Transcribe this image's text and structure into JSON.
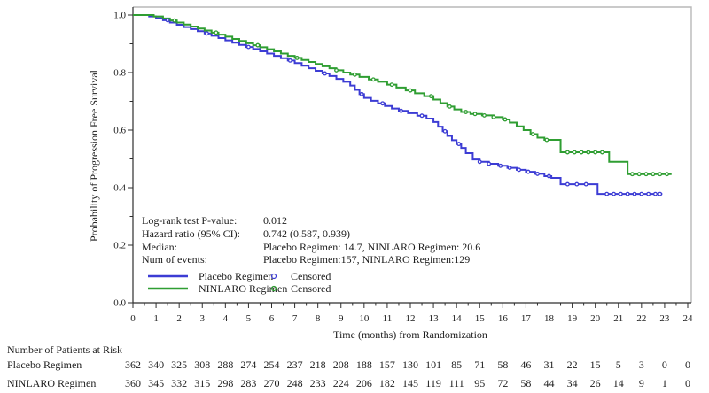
{
  "figure_title": "",
  "stats_panel": {
    "rows": [
      {
        "label": "Log-rank test P-value:",
        "value": "0.012"
      },
      {
        "label": "Hazard ratio (95% CI):",
        "value": "0.742 (0.587, 0.939)"
      },
      {
        "label": "Median:",
        "value": "Placebo Regimen: 14.7, NINLARO Regimen: 20.6"
      },
      {
        "label": "Num of events:",
        "value": "Placebo Regimen:157, NINLARO Regimen:129"
      }
    ]
  },
  "legend": {
    "entries": [
      {
        "label": "Placebo Regimen",
        "censored_label": "Censored",
        "color": "#3c3cd4"
      },
      {
        "label": "NINLARO Regimen",
        "censored_label": "Censored",
        "color": "#2f9e32"
      }
    ]
  },
  "chart_data": {
    "type": "line",
    "variant": "kaplan_meier_step",
    "title": "",
    "xlabel": "Time (months) from Randomization",
    "ylabel": "Probability of Progression Free Survival",
    "xlim": [
      0,
      24
    ],
    "ylim": [
      0.0,
      1.0
    ],
    "xticks": [
      0,
      1,
      2,
      3,
      4,
      5,
      6,
      7,
      8,
      9,
      10,
      11,
      12,
      13,
      14,
      15,
      16,
      17,
      18,
      19,
      20,
      21,
      22,
      23,
      24
    ],
    "ytick_labels": [
      "0.0",
      "0.2",
      "0.4",
      "0.6",
      "0.8",
      "1.0"
    ],
    "grid": false,
    "legend_position": "inside-bottom-left",
    "colors": {
      "placebo": "#3c3cd4",
      "ninlaro": "#2f9e32",
      "axis": "#2e2e2e",
      "frame": "#b8b8b8"
    },
    "stats": {
      "log_rank_p_value": "0.012",
      "hazard_ratio": "0.742",
      "hazard_ratio_ci_95": "(0.587, 0.939)"
    },
    "series": [
      {
        "name": "Placebo Regimen",
        "color": "#3c3cd4",
        "median_pfs_months": 14.7,
        "num_events": 157,
        "steps": [
          [
            0,
            1.0
          ],
          [
            0.7,
            0.995
          ],
          [
            1.0,
            0.989
          ],
          [
            1.3,
            0.982
          ],
          [
            1.6,
            0.974
          ],
          [
            1.9,
            0.966
          ],
          [
            2.2,
            0.958
          ],
          [
            2.5,
            0.951
          ],
          [
            2.8,
            0.944
          ],
          [
            3.1,
            0.936
          ],
          [
            3.4,
            0.928
          ],
          [
            3.7,
            0.92
          ],
          [
            4.0,
            0.912
          ],
          [
            4.3,
            0.904
          ],
          [
            4.6,
            0.896
          ],
          [
            4.9,
            0.889
          ],
          [
            5.2,
            0.882
          ],
          [
            5.5,
            0.874
          ],
          [
            5.8,
            0.866
          ],
          [
            6.1,
            0.858
          ],
          [
            6.4,
            0.85
          ],
          [
            6.7,
            0.842
          ],
          [
            7.0,
            0.833
          ],
          [
            7.3,
            0.824
          ],
          [
            7.6,
            0.815
          ],
          [
            7.9,
            0.806
          ],
          [
            8.2,
            0.797
          ],
          [
            8.5,
            0.788
          ],
          [
            8.8,
            0.778
          ],
          [
            9.1,
            0.768
          ],
          [
            9.4,
            0.755
          ],
          [
            9.6,
            0.74
          ],
          [
            9.8,
            0.725
          ],
          [
            10.0,
            0.712
          ],
          [
            10.3,
            0.702
          ],
          [
            10.6,
            0.693
          ],
          [
            10.9,
            0.684
          ],
          [
            11.2,
            0.675
          ],
          [
            11.5,
            0.667
          ],
          [
            11.9,
            0.659
          ],
          [
            12.3,
            0.65
          ],
          [
            12.7,
            0.64
          ],
          [
            13.0,
            0.628
          ],
          [
            13.2,
            0.612
          ],
          [
            13.4,
            0.596
          ],
          [
            13.6,
            0.58
          ],
          [
            13.8,
            0.565
          ],
          [
            14.0,
            0.552
          ],
          [
            14.2,
            0.538
          ],
          [
            14.4,
            0.52
          ],
          [
            14.7,
            0.498
          ],
          [
            15.0,
            0.49
          ],
          [
            15.4,
            0.483
          ],
          [
            15.8,
            0.476
          ],
          [
            16.2,
            0.469
          ],
          [
            16.6,
            0.462
          ],
          [
            17.0,
            0.455
          ],
          [
            17.4,
            0.448
          ],
          [
            17.8,
            0.44
          ],
          [
            18.1,
            0.434
          ],
          [
            18.5,
            0.412
          ],
          [
            20.1,
            0.378
          ],
          [
            22.9,
            0.378
          ]
        ],
        "censor_times": [
          1.5,
          3.2,
          5.0,
          6.8,
          8.3,
          9.9,
          10.8,
          11.6,
          12.5,
          13.5,
          14.1,
          15.0,
          15.4,
          15.9,
          16.3,
          16.7,
          17.1,
          17.5,
          18.0,
          18.8,
          19.2,
          19.6,
          20.5,
          20.8,
          21.1,
          21.4,
          21.7,
          22.0,
          22.3,
          22.6,
          22.8
        ]
      },
      {
        "name": "NINLARO Regimen",
        "color": "#2f9e32",
        "median_pfs_months": 20.6,
        "num_events": 129,
        "steps": [
          [
            0,
            1.0
          ],
          [
            0.9,
            0.995
          ],
          [
            1.3,
            0.988
          ],
          [
            1.6,
            0.981
          ],
          [
            1.9,
            0.974
          ],
          [
            2.2,
            0.967
          ],
          [
            2.5,
            0.96
          ],
          [
            2.8,
            0.953
          ],
          [
            3.1,
            0.946
          ],
          [
            3.4,
            0.939
          ],
          [
            3.7,
            0.932
          ],
          [
            4.0,
            0.925
          ],
          [
            4.3,
            0.917
          ],
          [
            4.6,
            0.91
          ],
          [
            4.9,
            0.902
          ],
          [
            5.2,
            0.895
          ],
          [
            5.5,
            0.888
          ],
          [
            5.8,
            0.881
          ],
          [
            6.1,
            0.874
          ],
          [
            6.4,
            0.866
          ],
          [
            6.7,
            0.858
          ],
          [
            7.0,
            0.851
          ],
          [
            7.3,
            0.844
          ],
          [
            7.6,
            0.837
          ],
          [
            7.9,
            0.83
          ],
          [
            8.2,
            0.822
          ],
          [
            8.5,
            0.815
          ],
          [
            8.8,
            0.808
          ],
          [
            9.1,
            0.8
          ],
          [
            9.4,
            0.793
          ],
          [
            9.8,
            0.785
          ],
          [
            10.2,
            0.776
          ],
          [
            10.6,
            0.768
          ],
          [
            11.0,
            0.758
          ],
          [
            11.4,
            0.748
          ],
          [
            11.8,
            0.738
          ],
          [
            12.2,
            0.728
          ],
          [
            12.6,
            0.718
          ],
          [
            13.0,
            0.706
          ],
          [
            13.3,
            0.694
          ],
          [
            13.6,
            0.682
          ],
          [
            13.9,
            0.672
          ],
          [
            14.2,
            0.663
          ],
          [
            14.6,
            0.656
          ],
          [
            15.1,
            0.651
          ],
          [
            15.6,
            0.645
          ],
          [
            16.0,
            0.637
          ],
          [
            16.3,
            0.626
          ],
          [
            16.6,
            0.613
          ],
          [
            16.9,
            0.6
          ],
          [
            17.2,
            0.586
          ],
          [
            17.5,
            0.574
          ],
          [
            17.8,
            0.566
          ],
          [
            18.5,
            0.523
          ],
          [
            20.6,
            0.49
          ],
          [
            21.4,
            0.447
          ],
          [
            23.3,
            0.447
          ]
        ],
        "censor_times": [
          1.8,
          3.6,
          5.4,
          7.1,
          8.8,
          9.6,
          10.4,
          11.2,
          12.0,
          12.9,
          13.7,
          14.4,
          14.8,
          15.2,
          15.6,
          16.1,
          17.3,
          17.9,
          18.8,
          19.1,
          19.4,
          19.7,
          20.0,
          20.3,
          21.6,
          21.9,
          22.2,
          22.5,
          22.8,
          23.1
        ]
      }
    ],
    "number_at_risk": {
      "title": "Number of Patients at Risk",
      "times": [
        0,
        1,
        2,
        3,
        4,
        5,
        6,
        7,
        8,
        9,
        10,
        11,
        12,
        13,
        14,
        15,
        16,
        17,
        18,
        19,
        20,
        21,
        22,
        23,
        24
      ],
      "rows": [
        {
          "label": "Placebo Regimen",
          "values": [
            362,
            340,
            325,
            308,
            288,
            274,
            254,
            237,
            218,
            208,
            188,
            157,
            130,
            101,
            85,
            71,
            58,
            46,
            31,
            22,
            15,
            5,
            3,
            0,
            0
          ]
        },
        {
          "label": "NINLARO Regimen",
          "values": [
            360,
            345,
            332,
            315,
            298,
            283,
            270,
            248,
            233,
            224,
            206,
            182,
            145,
            119,
            111,
            95,
            72,
            58,
            44,
            34,
            26,
            14,
            9,
            1,
            0
          ]
        }
      ]
    }
  }
}
